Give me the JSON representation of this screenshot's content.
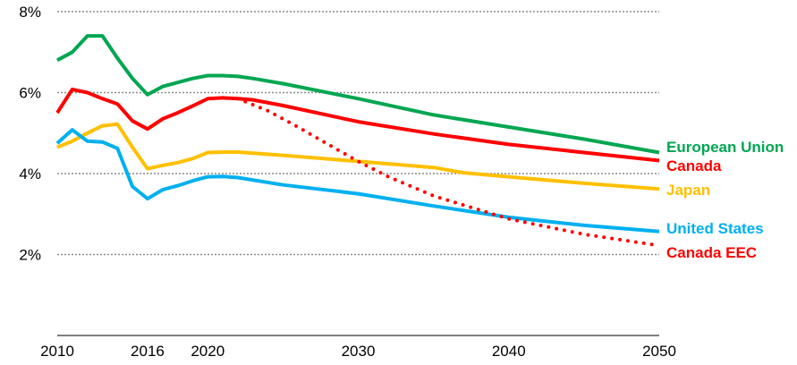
{
  "chart_data": {
    "type": "line",
    "title": "",
    "xlabel": "",
    "ylabel": "",
    "xlim": [
      2010,
      2050
    ],
    "ylim": [
      0,
      8
    ],
    "x_ticks": [
      2010,
      2016,
      2020,
      2030,
      2040,
      2050
    ],
    "x_tick_labels": [
      "2010",
      "2016",
      "2020",
      "2030",
      "2040",
      "2050"
    ],
    "y_ticks": [
      2,
      4,
      6,
      8
    ],
    "y_tick_labels": [
      "2%",
      "4%",
      "6%",
      "8%"
    ],
    "grid": "horizontal-dotted",
    "legend": "inline-right",
    "series": [
      {
        "name": "European Union",
        "color": "#00a651",
        "style": "solid",
        "x": [
          2010,
          2011,
          2012,
          2013,
          2014,
          2015,
          2016,
          2017,
          2018,
          2019,
          2020,
          2021,
          2022,
          2023,
          2025,
          2030,
          2035,
          2040,
          2045,
          2050
        ],
        "y": [
          6.8,
          7.0,
          7.4,
          7.4,
          6.85,
          6.35,
          5.95,
          6.15,
          6.25,
          6.35,
          6.42,
          6.42,
          6.4,
          6.35,
          6.22,
          5.85,
          5.45,
          5.15,
          4.85,
          4.52
        ]
      },
      {
        "name": "Canada",
        "color": "#ff0000",
        "style": "solid",
        "x": [
          2010,
          2011,
          2012,
          2013,
          2014,
          2015,
          2016,
          2017,
          2018,
          2019,
          2020,
          2021,
          2022,
          2023,
          2025,
          2030,
          2035,
          2040,
          2045,
          2050
        ],
        "y": [
          5.5,
          6.08,
          6.0,
          5.85,
          5.72,
          5.3,
          5.1,
          5.35,
          5.5,
          5.67,
          5.85,
          5.87,
          5.85,
          5.82,
          5.68,
          5.28,
          4.98,
          4.72,
          4.52,
          4.32
        ]
      },
      {
        "name": "Japan",
        "color": "#ffc000",
        "style": "solid",
        "x": [
          2010,
          2011,
          2012,
          2013,
          2014,
          2015,
          2016,
          2017,
          2018,
          2019,
          2020,
          2021,
          2022,
          2025,
          2030,
          2035,
          2037,
          2040,
          2045,
          2050
        ],
        "y": [
          4.65,
          4.8,
          5.0,
          5.18,
          5.22,
          4.65,
          4.12,
          4.2,
          4.27,
          4.37,
          4.52,
          4.53,
          4.53,
          4.45,
          4.3,
          4.15,
          4.02,
          3.92,
          3.76,
          3.62
        ]
      },
      {
        "name": "United States",
        "color": "#00b0f0",
        "style": "solid",
        "x": [
          2010,
          2011,
          2012,
          2013,
          2014,
          2015,
          2016,
          2017,
          2018,
          2019,
          2020,
          2021,
          2022,
          2025,
          2030,
          2035,
          2040,
          2045,
          2050
        ],
        "y": [
          4.75,
          5.08,
          4.8,
          4.78,
          4.62,
          3.68,
          3.38,
          3.6,
          3.7,
          3.82,
          3.92,
          3.93,
          3.9,
          3.72,
          3.5,
          3.2,
          2.92,
          2.72,
          2.57
        ]
      },
      {
        "name": "Canada EEC",
        "color": "#ff0000",
        "style": "dotted",
        "x": [
          2022,
          2024,
          2026,
          2028,
          2030,
          2032,
          2035,
          2040,
          2045,
          2050
        ],
        "y": [
          5.85,
          5.55,
          5.15,
          4.72,
          4.3,
          3.92,
          3.45,
          2.88,
          2.5,
          2.22
        ]
      }
    ]
  }
}
